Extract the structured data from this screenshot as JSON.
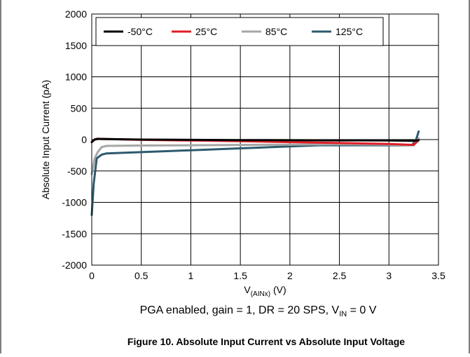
{
  "chart_data": {
    "type": "line",
    "title": "Figure 10. Absolute Input Current vs Absolute Input Voltage",
    "subtitle": "PGA enabled, gain = 1, DR = 20 SPS, V_IN = 0 V",
    "subtitle_parts": {
      "pre": "PGA enabled, gain = 1, DR = 20 SPS, V",
      "sub": "IN",
      "post": " = 0 V"
    },
    "xlabel": "V_(AINx) (V)",
    "xlabel_parts": {
      "pre": "V",
      "sub": "(AINx)",
      "post": " (V)"
    },
    "ylabel": "Absolute Input Current (pA)",
    "xlim": [
      0,
      3.5
    ],
    "ylim": [
      -2000,
      2000
    ],
    "xticks": [
      0,
      0.5,
      1,
      1.5,
      2,
      2.5,
      3,
      3.5
    ],
    "xtick_labels": [
      "0",
      "0.5",
      "1",
      "1.5",
      "2",
      "2.5",
      "3",
      "3.5"
    ],
    "yticks": [
      -2000,
      -1500,
      -1000,
      -500,
      0,
      500,
      1000,
      1500,
      2000
    ],
    "ytick_labels": [
      "-2000",
      "-1500",
      "-1000",
      "-500",
      "0",
      "500",
      "1000",
      "1500",
      "2000"
    ],
    "grid": true,
    "legend_position": "top",
    "series": [
      {
        "name": "-50°C",
        "color": "#000000",
        "x": [
          0.0,
          0.03,
          0.06,
          0.1,
          0.5,
          1.0,
          1.5,
          2.0,
          2.5,
          3.0,
          3.25,
          3.3
        ],
        "y": [
          -40,
          0,
          10,
          10,
          0,
          -5,
          -8,
          -10,
          -12,
          -15,
          -20,
          -10
        ]
      },
      {
        "name": "25°C",
        "color": "#e01e26",
        "x": [
          0.0,
          0.03,
          0.06,
          0.1,
          0.5,
          1.0,
          1.5,
          2.0,
          2.5,
          3.0,
          3.25,
          3.3
        ],
        "y": [
          -40,
          5,
          15,
          10,
          -5,
          -15,
          -25,
          -40,
          -55,
          -70,
          -85,
          -10
        ]
      },
      {
        "name": "85°C",
        "color": "#a6a6a6",
        "x": [
          0.0,
          0.03,
          0.06,
          0.1,
          0.15,
          0.5,
          1.0,
          1.5,
          2.0,
          2.5,
          3.0,
          3.25,
          3.3
        ],
        "y": [
          -550,
          -300,
          -200,
          -120,
          -100,
          -95,
          -90,
          -85,
          -80,
          -75,
          -80,
          -90,
          20
        ]
      },
      {
        "name": "125°C",
        "color": "#2d5a6e",
        "x": [
          0.0,
          0.02,
          0.05,
          0.1,
          0.15,
          0.5,
          1.0,
          1.5,
          2.0,
          2.3,
          3.0,
          3.23,
          3.27,
          3.3
        ],
        "y": [
          -1200,
          -700,
          -300,
          -240,
          -220,
          -200,
          -170,
          -140,
          -110,
          -90,
          -90,
          -90,
          -20,
          130
        ]
      }
    ]
  }
}
